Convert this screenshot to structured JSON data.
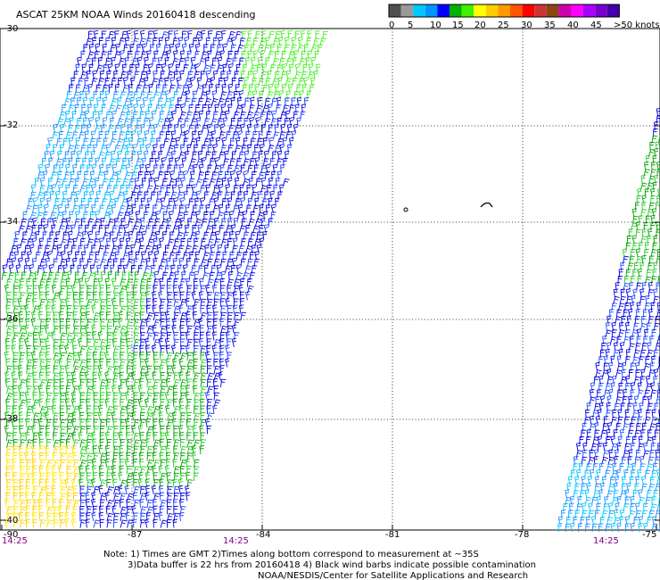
{
  "title": "ASCAT 25KM NOAA Winds 20160418 descending",
  "legend": {
    "bins": [
      {
        "label": "0",
        "color": "#505050"
      },
      {
        "label": "5",
        "color": "#9a9a9a"
      },
      {
        "label": "",
        "color": "#00c8ff"
      },
      {
        "label": "10",
        "color": "#0096ff"
      },
      {
        "label": "",
        "color": "#0000ff"
      },
      {
        "label": "15",
        "color": "#00b000"
      },
      {
        "label": "",
        "color": "#44ee00"
      },
      {
        "label": "20",
        "color": "#ffff00"
      },
      {
        "label": "",
        "color": "#ffcc00"
      },
      {
        "label": "25",
        "color": "#ff9900"
      },
      {
        "label": "",
        "color": "#ff5500"
      },
      {
        "label": "30",
        "color": "#ff0000"
      },
      {
        "label": "",
        "color": "#cc3333"
      },
      {
        "label": "35",
        "color": "#8b4513"
      },
      {
        "label": "",
        "color": "#cc00aa"
      },
      {
        "label": "40",
        "color": "#ff00ff"
      },
      {
        "label": "",
        "color": "#aa00ff"
      },
      {
        "label": "45",
        "color": "#7700cc"
      },
      {
        "label": "",
        "color": "#4400aa"
      }
    ],
    "tick_labels": [
      "0",
      "5",
      "10",
      "15",
      "20",
      "25",
      "30",
      "35",
      "40",
      "45",
      ">50 knots"
    ]
  },
  "lat_labels": [
    "-30",
    "-32",
    "-34",
    "-36",
    "-38",
    "-40"
  ],
  "lon_labels": [
    "-90",
    "-87",
    "-84",
    "-81",
    "-78",
    "-75"
  ],
  "time_labels": [
    "14:25",
    "14:25",
    "14:25"
  ],
  "notes": [
    "Note: 1) Times are GMT 2)Times along bottom correspond to measurement at ~35S",
    "3)Data buffer is 22 hrs from 20160418 4) Black wind barbs indicate possible contamination",
    "NOAA/NESDIS/Center for Satellite Applications and Research"
  ]
}
